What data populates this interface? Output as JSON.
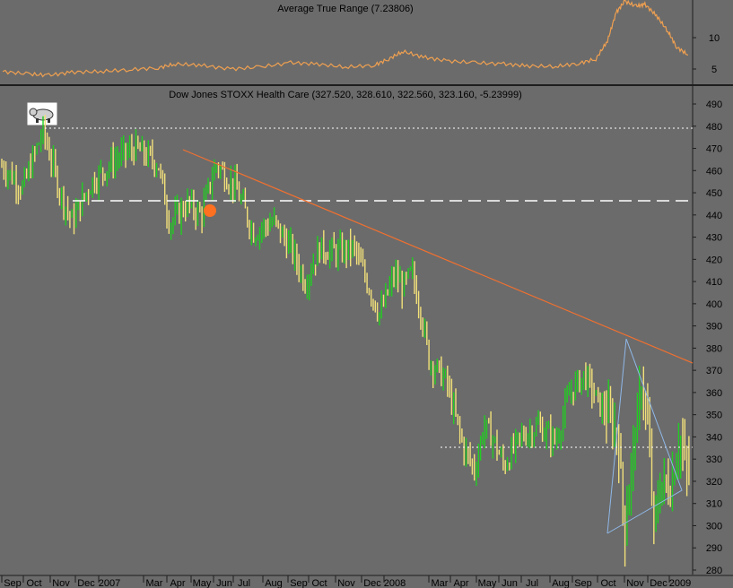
{
  "colors": {
    "background": "#6b6b6b",
    "separator": "#1e1e1e",
    "text": "#000000",
    "atr_line": "#f0a050",
    "up_bar": "#22cc22",
    "down_bar": "#f2e07a",
    "downtrend_line": "#f07030",
    "triangle_line": "#8fb8e8",
    "reference_line": "#ffffff",
    "marker": "#ff7020"
  },
  "atr": {
    "title": "Average True Range (7.23806)"
  },
  "price": {
    "title": "Dow Jones STOXX Health Care (327.520, 328.610, 322.560, 323.160, -5.23999)",
    "bear_icon": "bear-icon"
  },
  "chart_data": [
    {
      "type": "line",
      "title": "Average True Range (7.23806)",
      "x_label_months": [
        "Sep 2006",
        "Oct",
        "Nov",
        "Dec",
        "2007",
        "Mar",
        "Apr",
        "May",
        "Jun",
        "Jul",
        "Aug",
        "Sep",
        "Oct",
        "Nov",
        "Dec",
        "2008",
        "Mar",
        "Apr",
        "May",
        "Jun",
        "Jul",
        "Aug",
        "Sep",
        "Oct",
        "Nov",
        "Dec",
        "2009"
      ],
      "ylim": [
        3,
        18
      ],
      "yticks": [
        5,
        10
      ],
      "points": [
        {
          "x": 2006.66,
          "y": 4.6
        },
        {
          "x": 2006.75,
          "y": 4.2
        },
        {
          "x": 2006.82,
          "y": 4.0
        },
        {
          "x": 2006.9,
          "y": 4.5
        },
        {
          "x": 2007.0,
          "y": 4.6
        },
        {
          "x": 2007.1,
          "y": 4.9
        },
        {
          "x": 2007.2,
          "y": 5.2
        },
        {
          "x": 2007.26,
          "y": 5.8
        },
        {
          "x": 2007.35,
          "y": 5.6
        },
        {
          "x": 2007.45,
          "y": 5.0
        },
        {
          "x": 2007.55,
          "y": 5.3
        },
        {
          "x": 2007.66,
          "y": 6.0
        },
        {
          "x": 2007.75,
          "y": 5.8
        },
        {
          "x": 2007.85,
          "y": 5.3
        },
        {
          "x": 2007.95,
          "y": 5.6
        },
        {
          "x": 2008.0,
          "y": 6.6
        },
        {
          "x": 2008.05,
          "y": 7.8
        },
        {
          "x": 2008.12,
          "y": 6.9
        },
        {
          "x": 2008.2,
          "y": 6.3
        },
        {
          "x": 2008.3,
          "y": 6.0
        },
        {
          "x": 2008.4,
          "y": 5.8
        },
        {
          "x": 2008.48,
          "y": 5.5
        },
        {
          "x": 2008.58,
          "y": 5.4
        },
        {
          "x": 2008.66,
          "y": 5.9
        },
        {
          "x": 2008.72,
          "y": 6.6
        },
        {
          "x": 2008.76,
          "y": 9.5
        },
        {
          "x": 2008.79,
          "y": 14.0
        },
        {
          "x": 2008.82,
          "y": 15.8
        },
        {
          "x": 2008.86,
          "y": 15.0
        },
        {
          "x": 2008.89,
          "y": 15.3
        },
        {
          "x": 2008.93,
          "y": 13.5
        },
        {
          "x": 2008.97,
          "y": 11.0
        },
        {
          "x": 2009.0,
          "y": 8.5
        },
        {
          "x": 2009.04,
          "y": 7.24
        }
      ]
    },
    {
      "type": "candlestick",
      "title": "Dow Jones STOXX Health Care (327.520, 328.610, 322.560, 323.160, -5.23999)",
      "x_label_months": [
        "Sep 2006",
        "Oct",
        "Nov",
        "Dec",
        "2007",
        "Mar",
        "Apr",
        "May",
        "Jun",
        "Jul",
        "Aug",
        "Sep",
        "Oct",
        "Nov",
        "Dec",
        "2008",
        "Mar",
        "Apr",
        "May",
        "Jun",
        "Jul",
        "Aug",
        "Sep",
        "Oct",
        "Nov",
        "Dec",
        "2009"
      ],
      "ylim": [
        277,
        497
      ],
      "yticks": [
        280,
        290,
        300,
        310,
        320,
        330,
        340,
        350,
        360,
        370,
        380,
        390,
        400,
        410,
        420,
        430,
        440,
        450,
        460,
        470,
        480,
        490
      ],
      "close_path": [
        {
          "x": 2006.66,
          "y": 462
        },
        {
          "x": 2006.73,
          "y": 452
        },
        {
          "x": 2006.8,
          "y": 478
        },
        {
          "x": 2006.86,
          "y": 450
        },
        {
          "x": 2006.9,
          "y": 437
        },
        {
          "x": 2006.97,
          "y": 455
        },
        {
          "x": 2007.05,
          "y": 465
        },
        {
          "x": 2007.12,
          "y": 470
        },
        {
          "x": 2007.2,
          "y": 463
        },
        {
          "x": 2007.24,
          "y": 436
        },
        {
          "x": 2007.3,
          "y": 445
        },
        {
          "x": 2007.35,
          "y": 440
        },
        {
          "x": 2007.4,
          "y": 463
        },
        {
          "x": 2007.47,
          "y": 452
        },
        {
          "x": 2007.53,
          "y": 432
        },
        {
          "x": 2007.6,
          "y": 437
        },
        {
          "x": 2007.66,
          "y": 425
        },
        {
          "x": 2007.71,
          "y": 410
        },
        {
          "x": 2007.76,
          "y": 425
        },
        {
          "x": 2007.82,
          "y": 423
        },
        {
          "x": 2007.88,
          "y": 425
        },
        {
          "x": 2007.93,
          "y": 408
        },
        {
          "x": 2007.97,
          "y": 395
        },
        {
          "x": 2008.02,
          "y": 413
        },
        {
          "x": 2008.05,
          "y": 407
        },
        {
          "x": 2008.08,
          "y": 414
        },
        {
          "x": 2008.11,
          "y": 398
        },
        {
          "x": 2008.14,
          "y": 375
        },
        {
          "x": 2008.2,
          "y": 365
        },
        {
          "x": 2008.26,
          "y": 335
        },
        {
          "x": 2008.3,
          "y": 325
        },
        {
          "x": 2008.33,
          "y": 345
        },
        {
          "x": 2008.36,
          "y": 340
        },
        {
          "x": 2008.4,
          "y": 327
        },
        {
          "x": 2008.46,
          "y": 340
        },
        {
          "x": 2008.52,
          "y": 345
        },
        {
          "x": 2008.58,
          "y": 338
        },
        {
          "x": 2008.63,
          "y": 360
        },
        {
          "x": 2008.68,
          "y": 368
        },
        {
          "x": 2008.73,
          "y": 355
        },
        {
          "x": 2008.78,
          "y": 345
        },
        {
          "x": 2008.8,
          "y": 335
        },
        {
          "x": 2008.82,
          "y": 296
        },
        {
          "x": 2008.84,
          "y": 325
        },
        {
          "x": 2008.88,
          "y": 365
        },
        {
          "x": 2008.9,
          "y": 345
        },
        {
          "x": 2008.92,
          "y": 300
        },
        {
          "x": 2008.95,
          "y": 320
        },
        {
          "x": 2008.98,
          "y": 315
        },
        {
          "x": 2009.01,
          "y": 340
        },
        {
          "x": 2009.04,
          "y": 323.16
        }
      ]
    }
  ]
}
